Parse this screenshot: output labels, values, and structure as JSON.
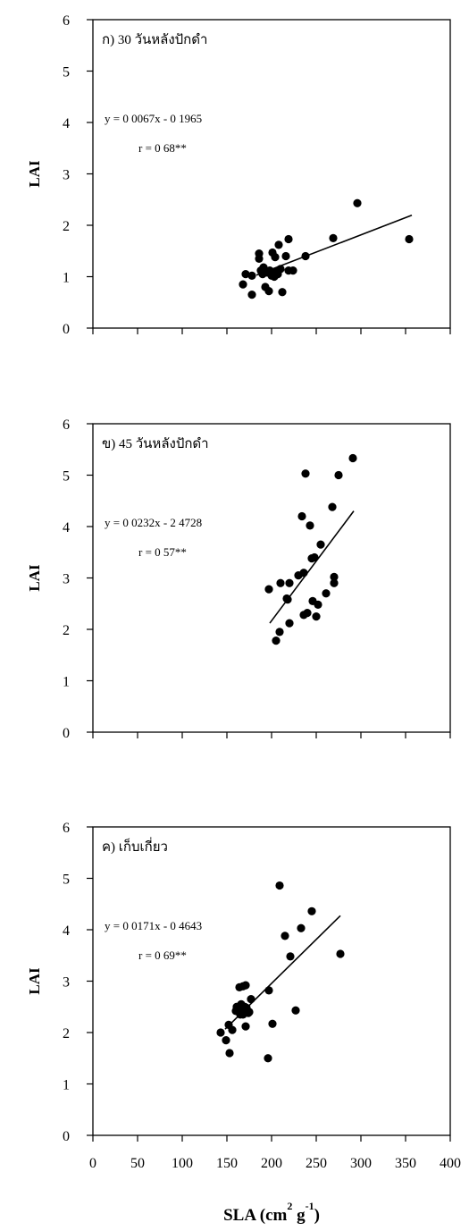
{
  "chart_data": [
    {
      "type": "scatter",
      "panel_label": "ก) 30 วันหลังปักดำ",
      "ylabel": "LAI",
      "ylim": [
        0,
        6
      ],
      "yticks": [
        "0",
        "1",
        "2",
        "3",
        "4",
        "5",
        "6"
      ],
      "xlim": [
        0,
        400
      ],
      "equation": "y = 0 0067x - 0 1965",
      "r_text": "r = 0 68**",
      "regression": {
        "slope": 0.0067,
        "intercept": -0.1965,
        "x_range": [
          183,
          357
        ]
      },
      "points": [
        [
          168,
          0.85
        ],
        [
          171,
          1.05
        ],
        [
          178,
          0.65
        ],
        [
          178,
          1.02
        ],
        [
          186,
          1.45
        ],
        [
          186,
          1.35
        ],
        [
          188,
          1.12
        ],
        [
          190,
          1.05
        ],
        [
          191,
          1.18
        ],
        [
          193,
          0.8
        ],
        [
          195,
          1.08
        ],
        [
          197,
          0.72
        ],
        [
          198,
          1.12
        ],
        [
          200,
          1.02
        ],
        [
          201,
          1.47
        ],
        [
          203,
          1.0
        ],
        [
          204,
          1.38
        ],
        [
          205,
          1.1
        ],
        [
          207,
          1.05
        ],
        [
          208,
          1.62
        ],
        [
          210,
          1.15
        ],
        [
          212,
          0.7
        ],
        [
          216,
          1.4
        ],
        [
          219,
          1.12
        ],
        [
          219,
          1.73
        ],
        [
          224,
          1.12
        ],
        [
          238,
          1.4
        ],
        [
          269,
          1.75
        ],
        [
          296,
          2.43
        ],
        [
          354,
          1.73
        ]
      ]
    },
    {
      "type": "scatter",
      "panel_label": "ข) 45 วันหลังปักดำ",
      "ylabel": "LAI",
      "ylim": [
        0,
        6
      ],
      "yticks": [
        "0",
        "1",
        "2",
        "3",
        "4",
        "5",
        "6"
      ],
      "xlim": [
        0,
        400
      ],
      "equation": "y = 0 0232x - 2 4728",
      "r_text": "r = 0 57**",
      "regression": {
        "slope": 0.0232,
        "intercept": -2.4728,
        "x_range": [
          198,
          292
        ]
      },
      "points": [
        [
          197,
          2.78
        ],
        [
          205,
          1.78
        ],
        [
          209,
          1.95
        ],
        [
          210,
          2.9
        ],
        [
          217,
          2.6
        ],
        [
          218,
          2.58
        ],
        [
          220,
          2.9
        ],
        [
          220,
          2.12
        ],
        [
          230,
          3.05
        ],
        [
          234,
          4.2
        ],
        [
          236,
          2.28
        ],
        [
          236,
          3.1
        ],
        [
          238,
          5.03
        ],
        [
          240,
          2.32
        ],
        [
          243,
          4.02
        ],
        [
          245,
          3.38
        ],
        [
          246,
          2.55
        ],
        [
          248,
          3.4
        ],
        [
          250,
          2.25
        ],
        [
          252,
          2.48
        ],
        [
          255,
          3.65
        ],
        [
          261,
          2.7
        ],
        [
          268,
          4.38
        ],
        [
          270,
          3.02
        ],
        [
          270,
          2.9
        ],
        [
          275,
          5.0
        ],
        [
          291,
          5.33
        ]
      ]
    },
    {
      "type": "scatter",
      "panel_label": "ค) เก็บเกี่ยว",
      "ylabel": "LAI",
      "ylim": [
        0,
        6
      ],
      "yticks": [
        "0",
        "1",
        "2",
        "3",
        "4",
        "5",
        "6"
      ],
      "xlabel": "SLA (cm",
      "xlabel_sup_1": "2",
      "xlabel_mid": " g",
      "xlabel_sup_2": "-1",
      "xlabel_end": ")",
      "xlim": [
        0,
        400
      ],
      "xticks": [
        "0",
        "50",
        "100",
        "150",
        "200",
        "250",
        "300",
        "350",
        "400"
      ],
      "equation": "y = 0 0171x - 0 4643",
      "r_text": "r = 0 69**",
      "regression": {
        "slope": 0.0171,
        "intercept": -0.4643,
        "x_range": [
          148,
          277
        ]
      },
      "points": [
        [
          143,
          2.0
        ],
        [
          149,
          1.85
        ],
        [
          152,
          2.15
        ],
        [
          153,
          1.6
        ],
        [
          156,
          2.05
        ],
        [
          160,
          2.42
        ],
        [
          161,
          2.5
        ],
        [
          163,
          2.4
        ],
        [
          164,
          2.88
        ],
        [
          165,
          2.35
        ],
        [
          166,
          2.55
        ],
        [
          167,
          2.45
        ],
        [
          168,
          2.35
        ],
        [
          168,
          2.9
        ],
        [
          170,
          2.5
        ],
        [
          171,
          2.12
        ],
        [
          171,
          2.92
        ],
        [
          172,
          2.48
        ],
        [
          174,
          2.38
        ],
        [
          175,
          2.4
        ],
        [
          177,
          2.65
        ],
        [
          196,
          1.5
        ],
        [
          197,
          2.82
        ],
        [
          201,
          2.17
        ],
        [
          209,
          4.86
        ],
        [
          215,
          3.88
        ],
        [
          221,
          3.48
        ],
        [
          227,
          2.43
        ],
        [
          233,
          4.03
        ],
        [
          245,
          4.36
        ],
        [
          277,
          3.53
        ]
      ]
    }
  ]
}
